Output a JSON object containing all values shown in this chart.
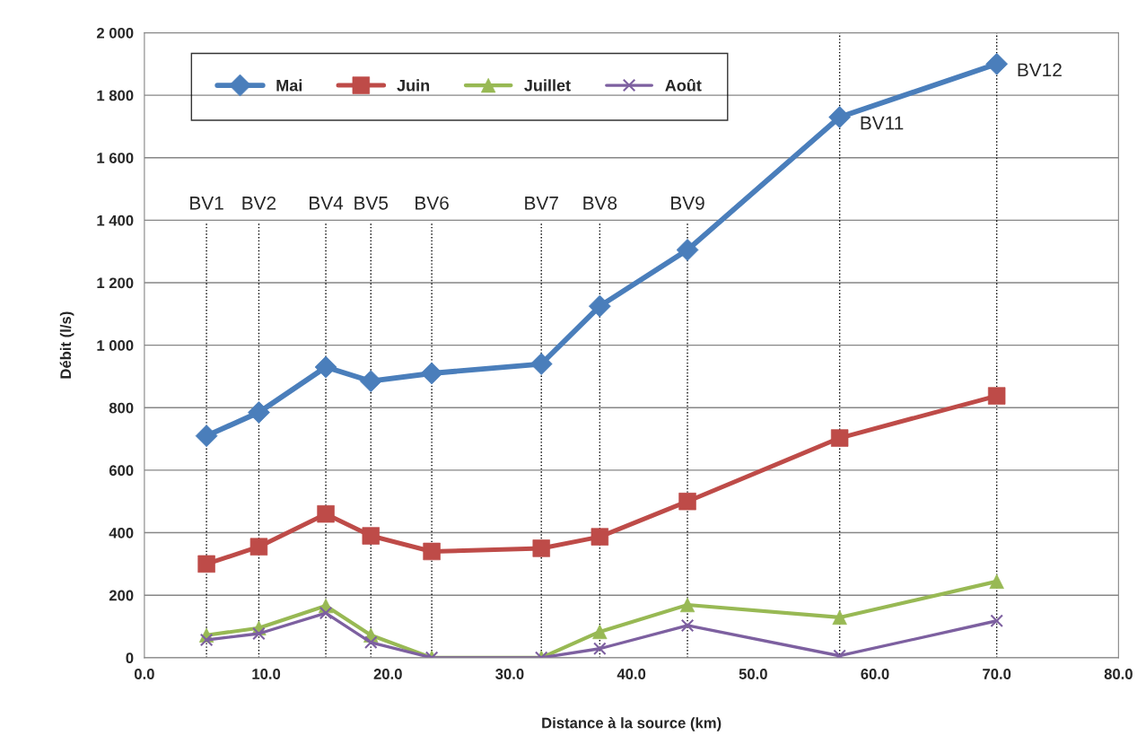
{
  "chart_data": {
    "type": "line",
    "xlabel": "Distance à la source (km)",
    "ylabel": "Débit (l/s)",
    "x": [
      5.1,
      9.4,
      14.9,
      18.6,
      23.6,
      32.6,
      37.4,
      44.6,
      57.1,
      70.0
    ],
    "series": [
      {
        "name": "Mai",
        "color": "#4a7ebb",
        "marker": "diamond",
        "values": [
          710,
          785,
          930,
          885,
          910,
          940,
          1125,
          1305,
          1730,
          1900
        ]
      },
      {
        "name": "Juin",
        "color": "#be4b48",
        "marker": "square",
        "values": [
          300,
          355,
          460,
          390,
          340,
          350,
          387,
          500,
          703,
          838
        ]
      },
      {
        "name": "Juillet",
        "color": "#98b954",
        "marker": "triangle",
        "values": [
          72,
          95,
          166,
          72,
          0,
          0,
          83,
          169,
          129,
          244
        ]
      },
      {
        "name": "Août",
        "color": "#7d60a0",
        "marker": "cross",
        "values": [
          57,
          77,
          143,
          49,
          0,
          0,
          29,
          103,
          6,
          118
        ]
      }
    ],
    "xlim": [
      0,
      80
    ],
    "xticks": [
      {
        "value": 0,
        "label": "0.0"
      },
      {
        "value": 10,
        "label": "10.0"
      },
      {
        "value": 20,
        "label": "20.0"
      },
      {
        "value": 30,
        "label": "30.0"
      },
      {
        "value": 40,
        "label": "40.0"
      },
      {
        "value": 50,
        "label": "50.0"
      },
      {
        "value": 60,
        "label": "60.0"
      },
      {
        "value": 70,
        "label": "70.0"
      },
      {
        "value": 80,
        "label": "80.0"
      }
    ],
    "ylim": [
      0,
      2000
    ],
    "yticks": [
      0,
      200,
      400,
      600,
      800,
      {
        "value": 1000,
        "label": "1 000"
      },
      {
        "value": 1200,
        "label": "1 200"
      },
      {
        "value": 1400,
        "label": "1 400"
      },
      {
        "value": 1600,
        "label": "1 600"
      },
      {
        "value": 1800,
        "label": "1 800"
      },
      {
        "value": 2000,
        "label": "2 000"
      }
    ],
    "ref_lines": [
      {
        "axis": "x",
        "value": 5.1,
        "label": "BV1",
        "color": "#000000",
        "line_style": "dotted"
      },
      {
        "axis": "x",
        "value": 9.4,
        "label": "BV2",
        "color": "#000000",
        "line_style": "dotted"
      },
      {
        "axis": "x",
        "value": 14.9,
        "label": "BV4",
        "color": "#000000",
        "line_style": "dotted"
      },
      {
        "axis": "x",
        "value": 18.6,
        "label": "BV5",
        "color": "#000000",
        "line_style": "dotted"
      },
      {
        "axis": "x",
        "value": 23.6,
        "label": "BV6",
        "color": "#000000",
        "line_style": "dotted"
      },
      {
        "axis": "x",
        "value": 32.6,
        "label": "BV7",
        "color": "#000000",
        "line_style": "dotted"
      },
      {
        "axis": "x",
        "value": 37.4,
        "label": "BV8",
        "color": "#000000",
        "line_style": "dotted"
      },
      {
        "axis": "x",
        "value": 44.6,
        "label": "BV9",
        "color": "#000000",
        "line_style": "dotted"
      },
      {
        "axis": "x",
        "value": 57.1,
        "color": "#000000",
        "line_style": "dotted"
      },
      {
        "axis": "x",
        "value": 70.0,
        "color": "#000000",
        "line_style": "dotted"
      }
    ],
    "annotations": [
      {
        "text": "BV11",
        "x": 57.1,
        "y": 1730
      },
      {
        "text": "BV12",
        "x": 70.0,
        "y": 1900
      }
    ],
    "grid": "y",
    "legend": "top left",
    "line_style": "solid"
  }
}
